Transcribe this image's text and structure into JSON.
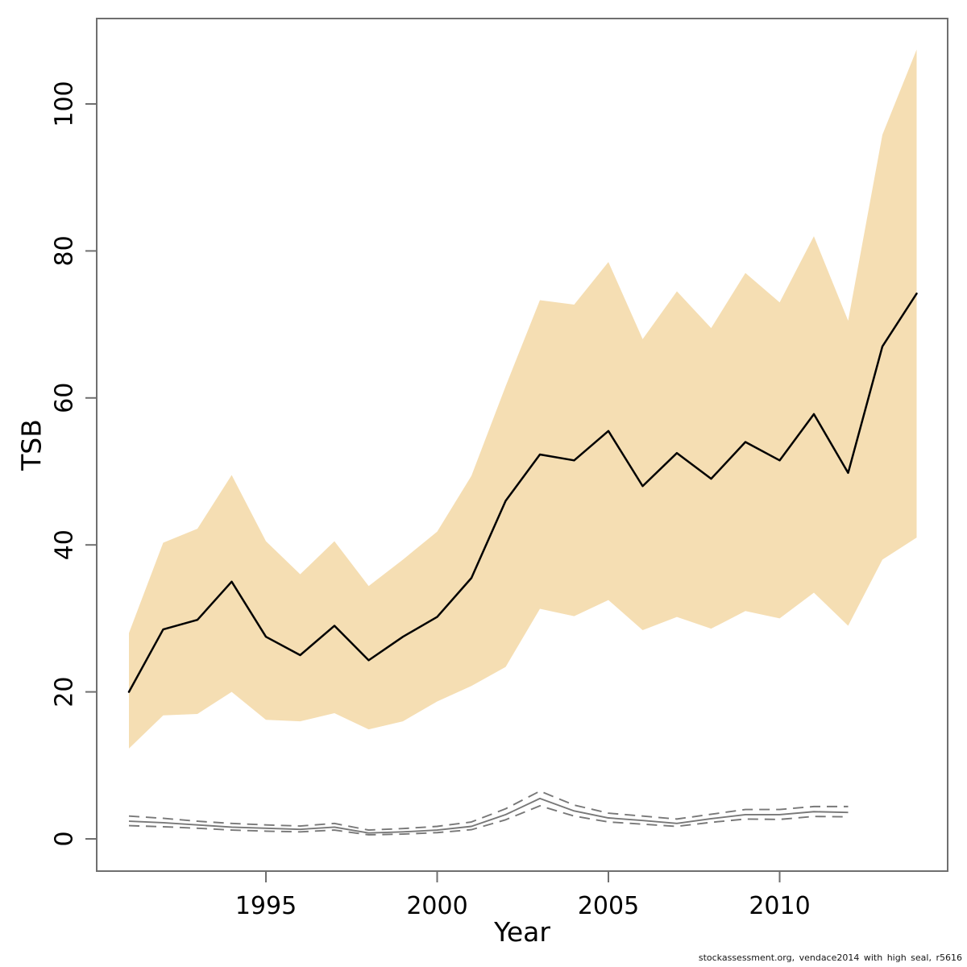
{
  "figure": {
    "background": "#ffffff",
    "footer": "stockassessment.org, vendace2014 with high seal, r5616"
  },
  "chart_data": {
    "type": "line",
    "title": "",
    "xlabel": "Year",
    "ylabel": "TSB",
    "grid": false,
    "legend": null,
    "x_ticks": [
      1995,
      2000,
      2005,
      2010
    ],
    "y_ticks": [
      0,
      20,
      40,
      60,
      80,
      100
    ],
    "xlim": [
      1990.1,
      2014.9
    ],
    "ylim": [
      -4.2,
      111.6
    ],
    "colors": {
      "band": "#f5deb3",
      "main_line": "#000000",
      "secondary_line": "#787878",
      "axis": "#6f6f6f"
    },
    "years": [
      1991,
      1992,
      1993,
      1994,
      1995,
      1996,
      1997,
      1998,
      1999,
      2000,
      2001,
      2002,
      2003,
      2004,
      2005,
      2006,
      2007,
      2008,
      2009,
      2010,
      2011,
      2012,
      2013,
      2014
    ],
    "series": [
      {
        "name": "TSB estimate (black solid)",
        "values": [
          20.0,
          28.5,
          29.8,
          35.0,
          27.5,
          25.0,
          29.0,
          24.3,
          27.5,
          30.2,
          35.5,
          46.0,
          52.3,
          51.5,
          55.5,
          48.0,
          52.5,
          49.0,
          54.0,
          51.5,
          57.8,
          49.8,
          67.0,
          74.2
        ]
      },
      {
        "name": "TSB confidence band upper (tan shading top)",
        "values": [
          28.0,
          40.3,
          42.2,
          49.5,
          40.5,
          36.0,
          40.5,
          34.4,
          38.0,
          41.8,
          49.4,
          61.6,
          73.3,
          72.7,
          78.5,
          68.0,
          74.5,
          69.5,
          77.0,
          73.0,
          82.0,
          70.5,
          95.8,
          107.4
        ]
      },
      {
        "name": "TSB confidence band lower (tan shading bottom)",
        "values": [
          12.3,
          16.8,
          17.0,
          20.0,
          16.2,
          16.0,
          17.1,
          14.9,
          16.0,
          18.7,
          20.8,
          23.4,
          31.3,
          30.3,
          32.5,
          28.4,
          30.2,
          28.6,
          31.0,
          30.0,
          33.5,
          29.0,
          38.0,
          41.0
        ]
      }
    ],
    "secondary_series": {
      "years": [
        1991,
        1992,
        1993,
        1994,
        1995,
        1996,
        1997,
        1998,
        1999,
        2000,
        2001,
        2002,
        2003,
        2004,
        2005,
        2006,
        2007,
        2008,
        2009,
        2010,
        2011,
        2012
      ],
      "solid": [
        2.4,
        2.2,
        1.9,
        1.6,
        1.45,
        1.3,
        1.6,
        0.8,
        0.95,
        1.2,
        1.7,
        3.3,
        5.5,
        3.8,
        2.85,
        2.5,
        2.1,
        2.75,
        3.3,
        3.3,
        3.7,
        3.6
      ],
      "upper_dashed": [
        3.1,
        2.8,
        2.4,
        2.1,
        1.9,
        1.75,
        2.1,
        1.2,
        1.4,
        1.7,
        2.3,
        4.1,
        6.5,
        4.6,
        3.5,
        3.1,
        2.7,
        3.35,
        4.0,
        4.0,
        4.4,
        4.4
      ],
      "lower_dashed": [
        1.8,
        1.65,
        1.45,
        1.2,
        1.05,
        0.95,
        1.2,
        0.55,
        0.65,
        0.85,
        1.25,
        2.6,
        4.5,
        3.1,
        2.3,
        2.0,
        1.7,
        2.25,
        2.7,
        2.65,
        3.05,
        3.0
      ]
    }
  }
}
